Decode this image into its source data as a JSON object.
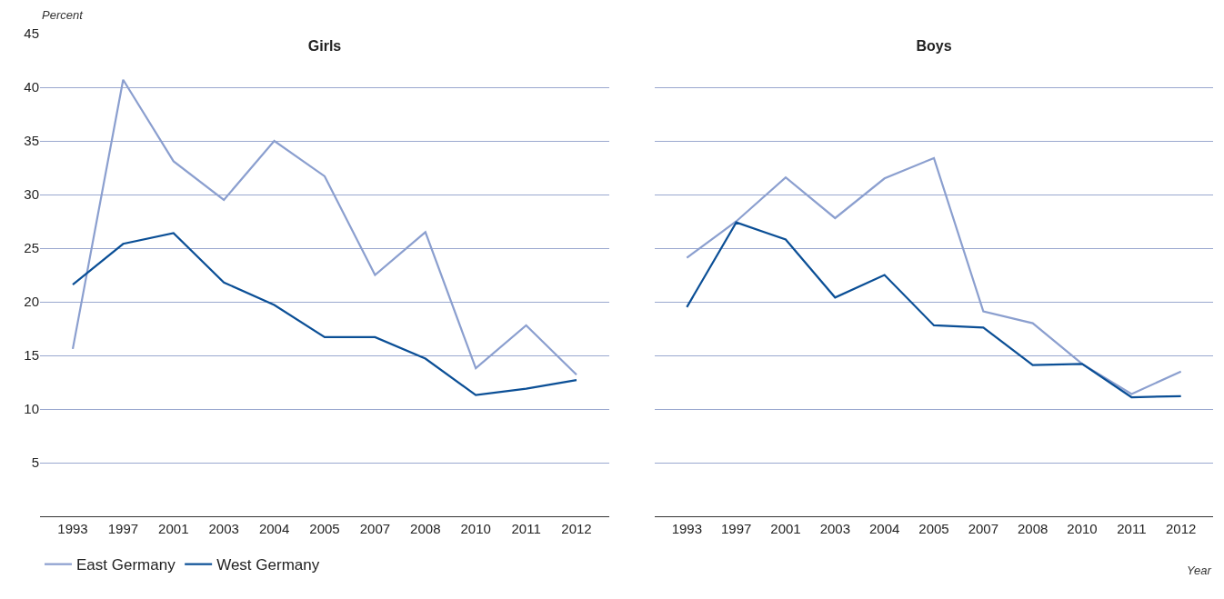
{
  "chart_data": [
    {
      "type": "line",
      "title": "Girls",
      "ylabel": "Percent",
      "categories": [
        "1993",
        "1997",
        "2001",
        "2003",
        "2004",
        "2005",
        "2007",
        "2008",
        "2010",
        "2011",
        "2012"
      ],
      "ylim": [
        0,
        45
      ],
      "yticks": [
        5,
        10,
        15,
        20,
        25,
        30,
        35,
        40,
        45
      ],
      "grid": "y",
      "legend": "bottom",
      "marker": "none",
      "line_style": "solid",
      "series": [
        {
          "name": "East Germany",
          "color": "#8b9fcf",
          "values": [
            15.6,
            40.7,
            33.1,
            29.5,
            35.0,
            31.7,
            22.5,
            26.5,
            13.8,
            17.8,
            13.2
          ]
        },
        {
          "name": "West Germany",
          "color": "#0b4f96",
          "values": [
            21.6,
            25.4,
            26.4,
            21.8,
            19.7,
            16.7,
            16.7,
            14.7,
            11.3,
            11.9,
            12.7
          ]
        }
      ]
    },
    {
      "type": "line",
      "title": "Boys",
      "xlabel": "Year",
      "categories": [
        "1993",
        "1997",
        "2001",
        "2003",
        "2004",
        "2005",
        "2007",
        "2008",
        "2010",
        "2011",
        "2012"
      ],
      "ylim": [
        0,
        45
      ],
      "yticks": [
        5,
        10,
        15,
        20,
        25,
        30,
        35,
        40,
        45
      ],
      "grid": "y",
      "tick_labels": "x",
      "marker": "none",
      "line_style": "solid",
      "series": [
        {
          "color": "#8b9fcf",
          "values": [
            24.1,
            27.5,
            31.6,
            27.8,
            31.5,
            33.4,
            19.1,
            18.0,
            14.2,
            11.4,
            13.5
          ]
        },
        {
          "color": "#0b4f96",
          "values": [
            19.5,
            27.4,
            25.8,
            20.4,
            22.5,
            17.8,
            17.6,
            14.1,
            14.2,
            11.1,
            11.2
          ]
        }
      ]
    }
  ]
}
